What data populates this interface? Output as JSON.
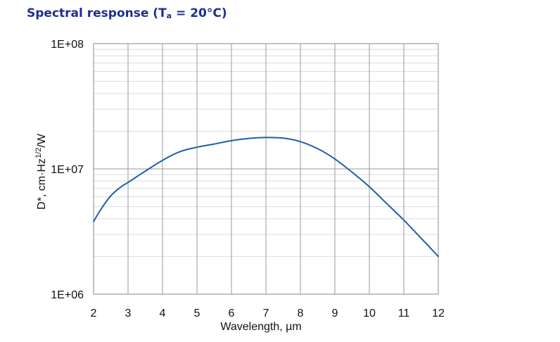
{
  "chart_data": {
    "type": "line",
    "title_prefix": "Spectral response (T",
    "title_sub": "a",
    "title_suffix": " = 20°C)",
    "xlabel": "Wavelength, µm",
    "ylabel_main": "D*, cm·Hz",
    "ylabel_sup": "1/2",
    "ylabel_tail": "/W",
    "xlim": [
      2,
      12
    ],
    "ylim": [
      1000000,
      100000000
    ],
    "y_scale": "log",
    "grid": true,
    "x_ticks": [
      {
        "value": 2,
        "label": "2"
      },
      {
        "value": 3,
        "label": "3"
      },
      {
        "value": 4,
        "label": "4"
      },
      {
        "value": 5,
        "label": "5"
      },
      {
        "value": 6,
        "label": "6"
      },
      {
        "value": 7,
        "label": "7"
      },
      {
        "value": 8,
        "label": "8"
      },
      {
        "value": 9,
        "label": "9"
      },
      {
        "value": 10,
        "label": "10"
      },
      {
        "value": 11,
        "label": "11"
      },
      {
        "value": 12,
        "label": "12"
      }
    ],
    "y_ticks": [
      {
        "value": 1000000,
        "label": "1E+06"
      },
      {
        "value": 10000000,
        "label": "1E+07"
      },
      {
        "value": 100000000,
        "label": "1E+08"
      }
    ],
    "series": [
      {
        "color": "#1f5fa8",
        "x": [
          2.0,
          2.2,
          2.5,
          2.8,
          3.0,
          3.5,
          4.0,
          4.5,
          5.0,
          5.5,
          6.0,
          6.5,
          7.0,
          7.5,
          8.0,
          8.5,
          9.0,
          9.5,
          10.0,
          10.5,
          11.0,
          11.5,
          12.0
        ],
        "y": [
          3800000,
          4700000,
          6100000,
          7200000,
          7800000,
          9600000,
          11700000,
          13700000,
          14900000,
          15800000,
          16800000,
          17500000,
          17800000,
          17600000,
          16500000,
          14500000,
          12000000,
          9400000,
          7200000,
          5300000,
          3900000,
          2800000,
          2000000
        ]
      }
    ]
  }
}
